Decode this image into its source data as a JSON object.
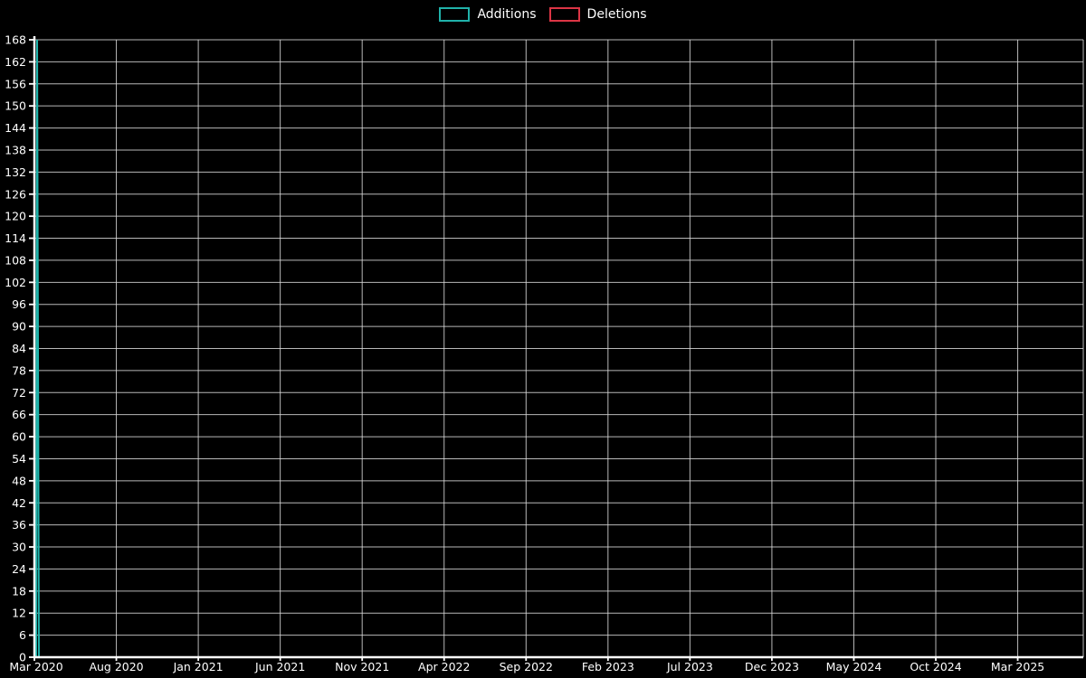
{
  "colors": {
    "background": "#000000",
    "grid": "#d9d9d9",
    "axis": "#ffffff",
    "text": "#ffffff",
    "additions": "#20b2aa",
    "deletions": "#dc3545"
  },
  "chart_data": {
    "type": "line",
    "title": "",
    "legend_position": "top-center",
    "grid": true,
    "ylim": [
      0,
      168
    ],
    "y_ticks": [
      0,
      6,
      12,
      18,
      24,
      30,
      36,
      42,
      48,
      54,
      60,
      66,
      72,
      78,
      84,
      90,
      96,
      102,
      108,
      114,
      120,
      126,
      132,
      138,
      144,
      150,
      156,
      162,
      168
    ],
    "x_tick_labels": [
      "Mar 2020",
      "Aug 2020",
      "Jan 2021",
      "Jun 2021",
      "Nov 2021",
      "Apr 2022",
      "Sep 2022",
      "Feb 2023",
      "Jul 2023",
      "Dec 2023",
      "May 2024",
      "Oct 2024",
      "Mar 2025"
    ],
    "series": [
      {
        "name": "Additions",
        "color": "#20b2aa",
        "baseline": 0,
        "data": [
          {
            "x": "Mar 2020",
            "y": 168
          }
        ]
      },
      {
        "name": "Deletions",
        "color": "#dc3545",
        "baseline": 0,
        "data": []
      }
    ]
  }
}
